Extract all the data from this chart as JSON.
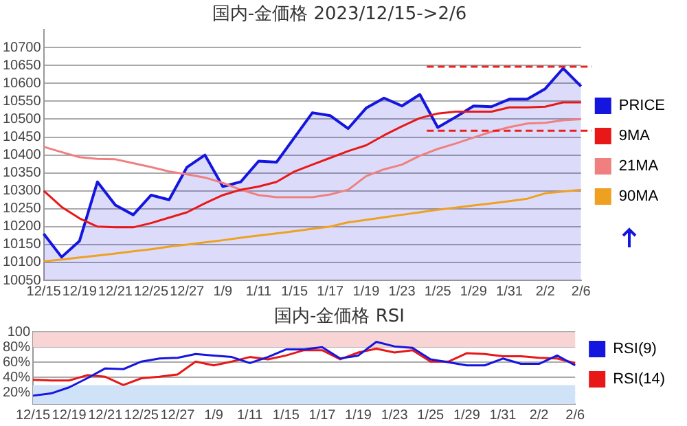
{
  "chart_data": [
    {
      "type": "line",
      "title": "国内-金価格 2023/12/15->2/6",
      "categories": [
        "12/15",
        null,
        "12/19",
        null,
        "12/21",
        null,
        "12/25",
        null,
        "12/27",
        null,
        "1/9",
        null,
        "1/11",
        null,
        "1/15",
        null,
        "1/17",
        null,
        "1/19",
        null,
        "1/23",
        null,
        "1/25",
        null,
        "1/29",
        null,
        "1/31",
        null,
        "2/2",
        null,
        "2/6"
      ],
      "series": [
        {
          "name": "PRICE",
          "type": "area",
          "color": "#1515e0",
          "values": [
            10180,
            10115,
            10160,
            10325,
            10260,
            10233,
            10288,
            10275,
            10366,
            10400,
            10312,
            10325,
            10383,
            10380,
            10449,
            10518,
            10510,
            10474,
            10531,
            10559,
            10537,
            10569,
            10477,
            10506,
            10537,
            10535,
            10556,
            10556,
            10585,
            10642,
            10592
          ]
        },
        {
          "name": "9MA",
          "color": "#e81818",
          "values": [
            10300,
            10255,
            10223,
            10200,
            10198,
            10198,
            10210,
            10225,
            10240,
            10265,
            10288,
            10303,
            10312,
            10325,
            10354,
            10373,
            10392,
            10411,
            10427,
            10455,
            10480,
            10503,
            10516,
            10521,
            10521,
            10521,
            10533,
            10533,
            10535,
            10547,
            10547
          ]
        },
        {
          "name": "21MA",
          "color": "#f08080",
          "values": [
            10423,
            10408,
            10394,
            10389,
            10388,
            10377,
            10366,
            10354,
            10346,
            10337,
            10322,
            10303,
            10288,
            10282,
            10282,
            10282,
            10290,
            10303,
            10341,
            10360,
            10373,
            10398,
            10417,
            10432,
            10449,
            10465,
            10478,
            10488,
            10490,
            10497,
            10500
          ]
        },
        {
          "name": "90MA",
          "color": "#f0a020",
          "values": [
            10103,
            10108,
            10114,
            10119,
            10125,
            10131,
            10137,
            10144,
            10150,
            10156,
            10162,
            10169,
            10175,
            10181,
            10187,
            10194,
            10200,
            10212,
            10219,
            10226,
            10233,
            10240,
            10247,
            10253,
            10259,
            10265,
            10271,
            10278,
            10293,
            10298,
            10303
          ]
        }
      ],
      "ylim": [
        10050,
        10750
      ],
      "yticks": [
        10050,
        10100,
        10150,
        10200,
        10250,
        10300,
        10350,
        10400,
        10450,
        10500,
        10550,
        10600,
        10650,
        10700
      ],
      "grid": "y",
      "legend": "right",
      "ref_lines": [
        {
          "axis": "y",
          "value": 10647,
          "color": "#e82020",
          "line_style": "dashed"
        },
        {
          "axis": "y",
          "value": 10468,
          "color": "#e82020",
          "line_style": "dashed"
        }
      ]
    },
    {
      "type": "line",
      "title": "国内-金価格 RSI",
      "categories": [
        "12/15",
        null,
        "12/19",
        null,
        "12/21",
        null,
        "12/25",
        null,
        "12/27",
        null,
        "1/9",
        null,
        "1/11",
        null,
        "1/15",
        null,
        "1/17",
        null,
        "1/19",
        null,
        "1/23",
        null,
        "1/25",
        null,
        "1/29",
        null,
        "1/31",
        null,
        "2/2",
        null,
        "2/6"
      ],
      "series": [
        {
          "name": "RSI(9)",
          "color": "#1515e0",
          "values": [
            16,
            19,
            27,
            39,
            52,
            51,
            61,
            65,
            66,
            71,
            69,
            67,
            59,
            67,
            77,
            77,
            80,
            65,
            69,
            87,
            81,
            79,
            64,
            60,
            56,
            56,
            65,
            58,
            58,
            69,
            56
          ]
        },
        {
          "name": "RSI(14)",
          "color": "#e81818",
          "values": [
            37,
            36,
            36,
            43,
            41,
            30,
            39,
            41,
            44,
            61,
            56,
            61,
            67,
            64,
            69,
            76,
            76,
            64,
            73,
            78,
            73,
            76,
            61,
            61,
            72,
            71,
            68,
            68,
            66,
            65,
            59
          ]
        }
      ],
      "ylim": [
        5,
        100
      ],
      "yticks": [
        {
          "value": 20,
          "label": "20%"
        },
        {
          "value": 40,
          "label": "40%"
        },
        {
          "value": 60,
          "label": "60%"
        },
        {
          "value": 80,
          "label": "80%"
        },
        100
      ],
      "bands": [
        {
          "axis": "y",
          "from": 80,
          "to": 100,
          "color": "#f9d4d4"
        },
        {
          "axis": "y",
          "from": 5,
          "to": 30,
          "color": "#d0e2f8"
        }
      ],
      "grid": "y",
      "legend": "right"
    }
  ]
}
